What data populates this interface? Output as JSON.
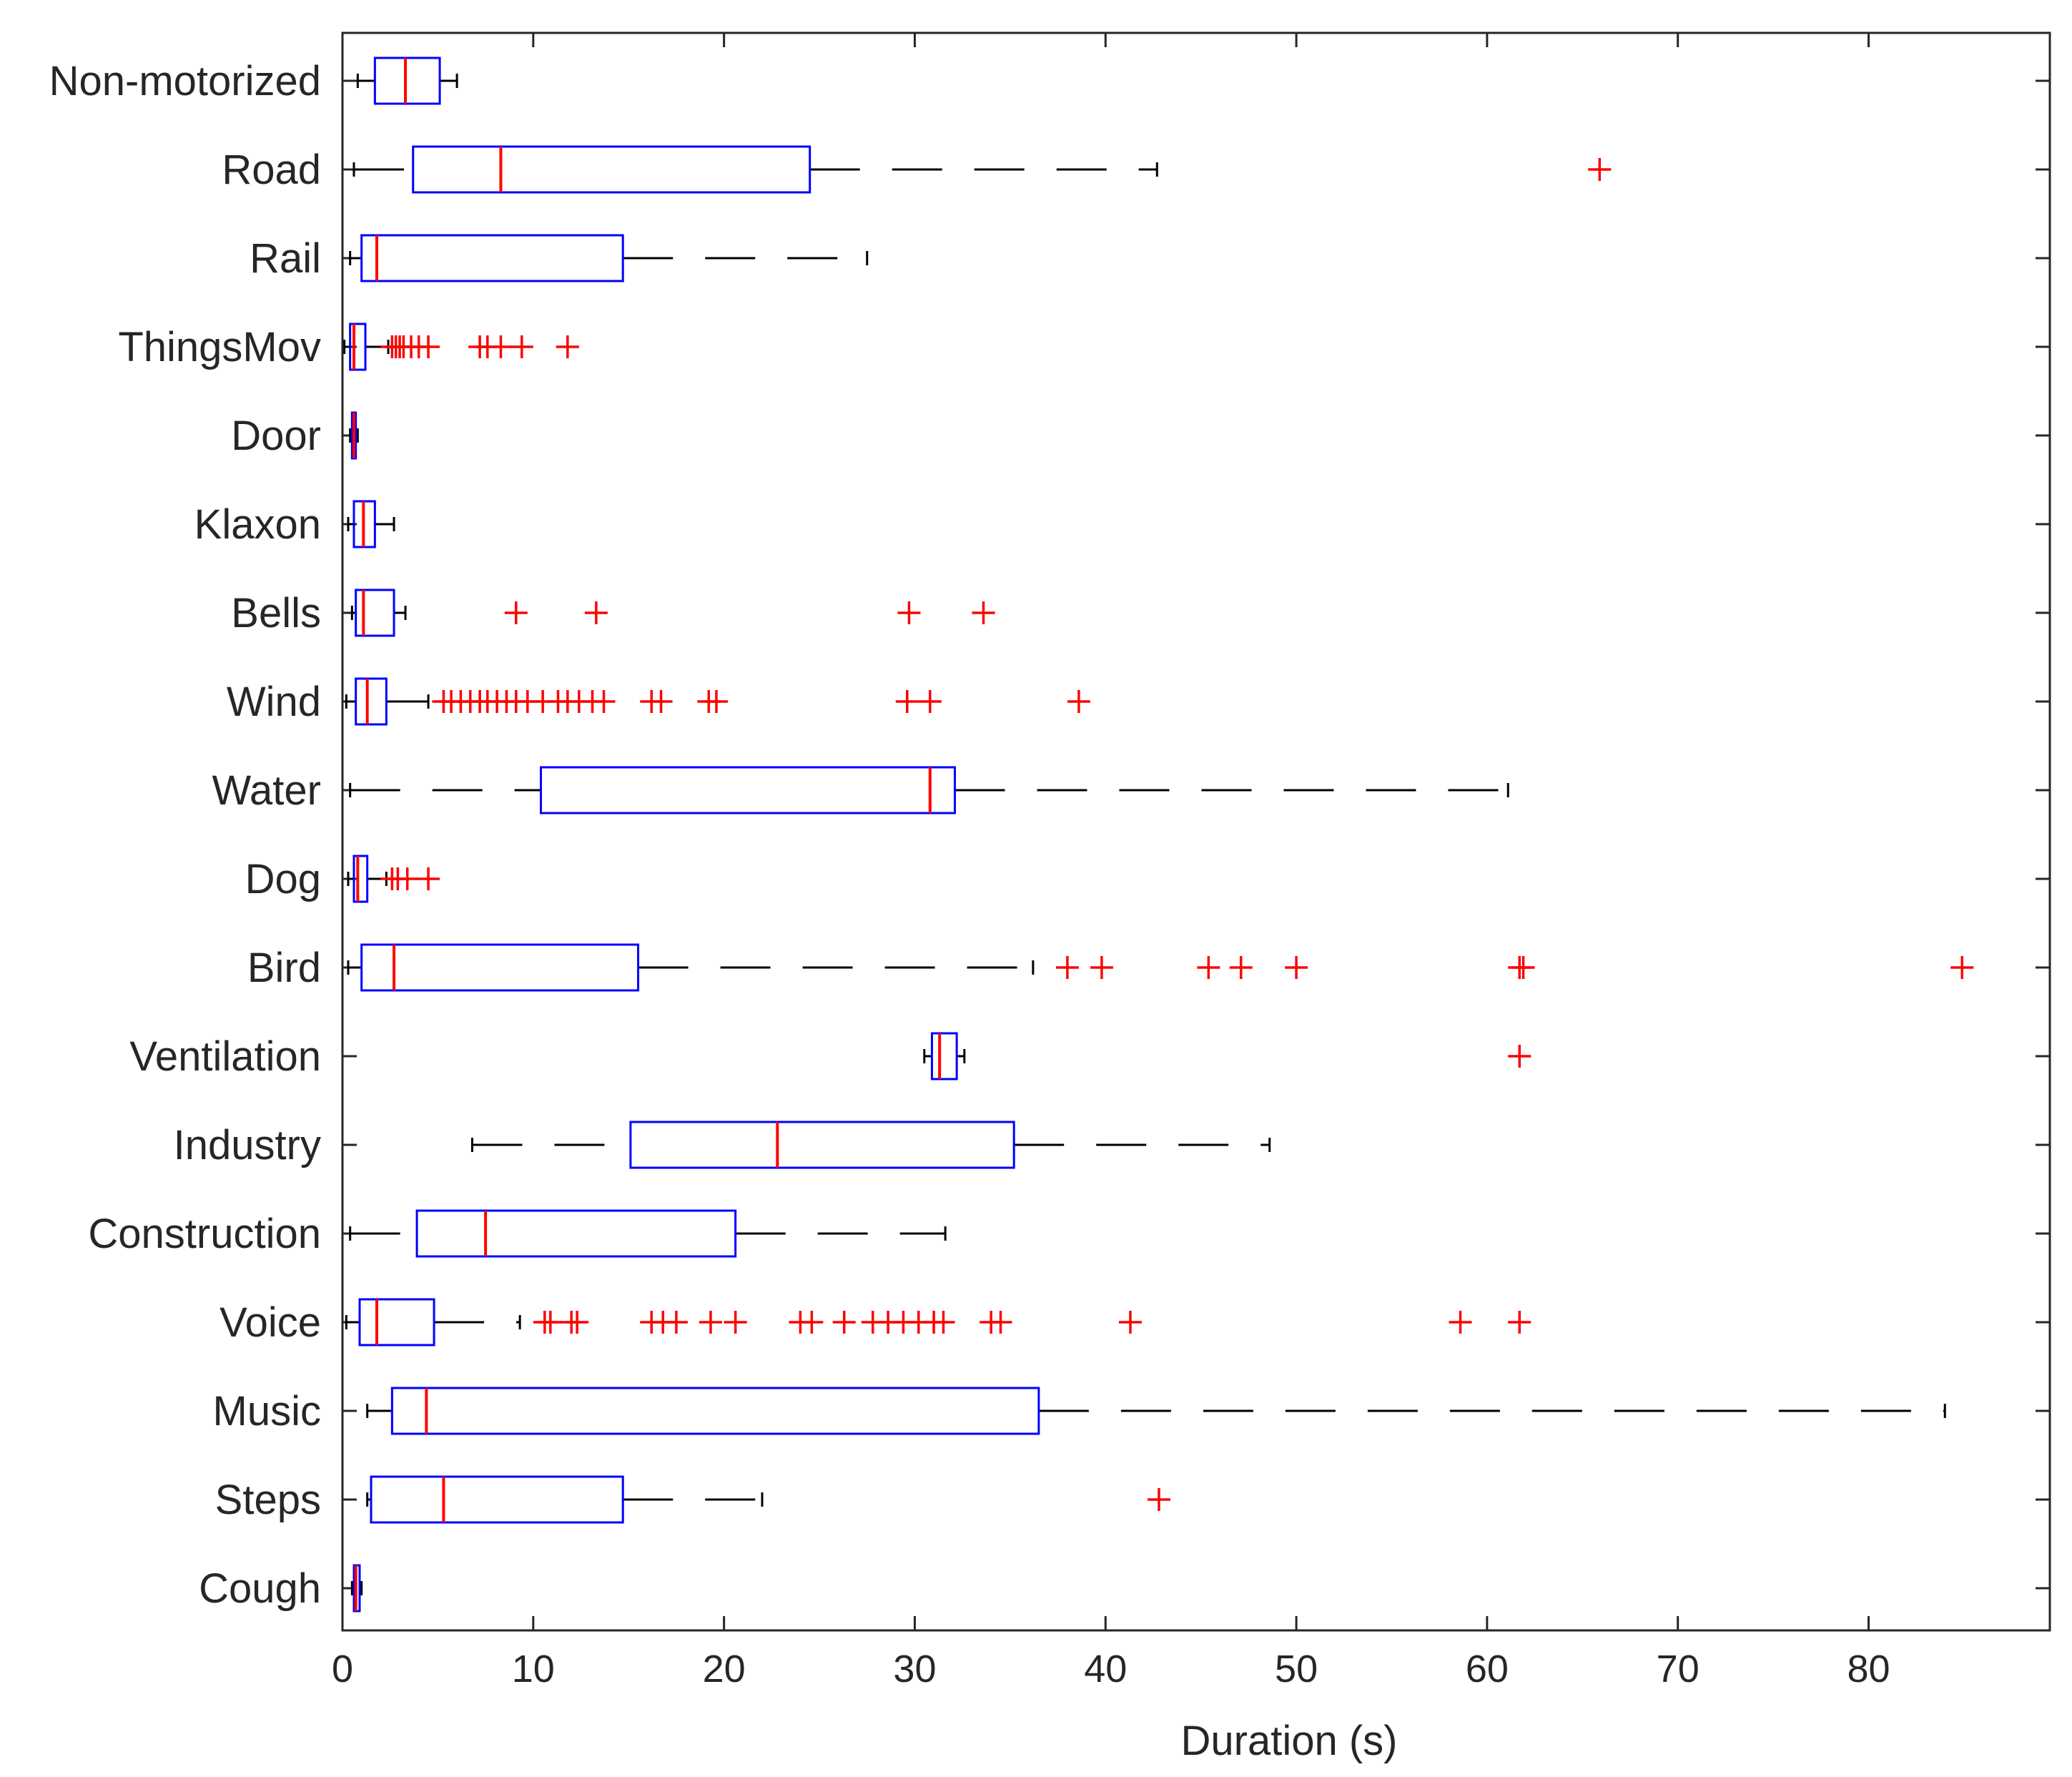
{
  "chart_data": {
    "type": "boxplot",
    "orientation": "horizontal",
    "title": "",
    "xlabel": "Duration (s)",
    "ylabel": "",
    "xlim": [
      0,
      89.5
    ],
    "xticks": [
      0,
      10,
      20,
      30,
      40,
      50,
      60,
      70,
      80
    ],
    "grid": false,
    "colors": {
      "box": "#0000ff",
      "median": "#ff0000",
      "whisker": "#000000",
      "outlier": "#ff0000",
      "axis": "#262626"
    },
    "categories": [
      "Non-motorized",
      "Road",
      "Rail",
      "ThingsMov",
      "Door",
      "Klaxon",
      "Bells",
      "Wind",
      "Water",
      "Dog",
      "Bird",
      "Ventilation",
      "Industry",
      "Construction",
      "Voice",
      "Music",
      "Steps",
      "Cough"
    ],
    "series": [
      {
        "name": "Non-motorized",
        "whisker_low": 0.8,
        "q1": 1.7,
        "median": 3.3,
        "q3": 5.1,
        "whisker_high": 6.0,
        "outliers": []
      },
      {
        "name": "Road",
        "whisker_low": 0.6,
        "q1": 3.7,
        "median": 8.3,
        "q3": 24.5,
        "whisker_high": 42.7,
        "outliers": [
          65.9
        ]
      },
      {
        "name": "Rail",
        "whisker_low": 0.4,
        "q1": 1.0,
        "median": 1.8,
        "q3": 14.7,
        "whisker_high": 27.5,
        "outliers": []
      },
      {
        "name": "ThingsMov",
        "whisker_low": 0.1,
        "q1": 0.4,
        "median": 0.6,
        "q3": 1.2,
        "whisker_high": 2.4,
        "outliers": [
          2.6,
          2.8,
          3.0,
          3.2,
          3.6,
          4.0,
          4.5,
          7.2,
          7.6,
          8.3,
          9.4,
          11.8
        ]
      },
      {
        "name": "Door",
        "whisker_low": 0.4,
        "q1": 0.5,
        "median": 0.6,
        "q3": 0.7,
        "whisker_high": 0.8,
        "outliers": []
      },
      {
        "name": "Klaxon",
        "whisker_low": 0.3,
        "q1": 0.6,
        "median": 1.1,
        "q3": 1.7,
        "whisker_high": 2.7,
        "outliers": []
      },
      {
        "name": "Bells",
        "whisker_low": 0.5,
        "q1": 0.7,
        "median": 1.1,
        "q3": 2.7,
        "whisker_high": 3.3,
        "outliers": [
          9.1,
          13.3,
          29.7,
          33.6
        ]
      },
      {
        "name": "Wind",
        "whisker_low": 0.2,
        "q1": 0.7,
        "median": 1.3,
        "q3": 2.3,
        "whisker_high": 4.5,
        "outliers": [
          5.3,
          5.7,
          6.2,
          6.7,
          7.2,
          7.6,
          8.1,
          8.6,
          9.1,
          9.7,
          10.5,
          11.3,
          11.8,
          12.4,
          13.1,
          13.7,
          16.2,
          16.7,
          19.2,
          19.6,
          29.6,
          30.8,
          38.6
        ]
      },
      {
        "name": "Water",
        "whisker_low": 0.4,
        "q1": 10.4,
        "median": 30.8,
        "q3": 32.1,
        "whisker_high": 61.1,
        "outliers": []
      },
      {
        "name": "Dog",
        "whisker_low": 0.3,
        "q1": 0.6,
        "median": 0.8,
        "q3": 1.3,
        "whisker_high": 2.3,
        "outliers": [
          2.6,
          2.9,
          3.4,
          4.5
        ]
      },
      {
        "name": "Bird",
        "whisker_low": 0.3,
        "q1": 1.0,
        "median": 2.7,
        "q3": 15.5,
        "whisker_high": 36.2,
        "outliers": [
          38.0,
          39.8,
          45.4,
          47.1,
          50.0,
          61.7,
          61.9,
          84.9
        ]
      },
      {
        "name": "Ventilation",
        "whisker_low": 30.5,
        "q1": 30.9,
        "median": 31.3,
        "q3": 32.2,
        "whisker_high": 32.6,
        "outliers": [
          61.7
        ]
      },
      {
        "name": "Industry",
        "whisker_low": 6.8,
        "q1": 15.1,
        "median": 22.8,
        "q3": 35.2,
        "whisker_high": 48.6,
        "outliers": []
      },
      {
        "name": "Construction",
        "whisker_low": 0.4,
        "q1": 3.9,
        "median": 7.5,
        "q3": 20.6,
        "whisker_high": 31.6,
        "outliers": []
      },
      {
        "name": "Voice",
        "whisker_low": 0.2,
        "q1": 0.9,
        "median": 1.8,
        "q3": 4.8,
        "whisker_high": 9.3,
        "outliers": [
          10.6,
          10.9,
          12.0,
          12.3,
          16.2,
          16.8,
          17.5,
          19.3,
          20.6,
          24.0,
          24.6,
          26.3,
          27.8,
          28.6,
          29.4,
          30.2,
          31.0,
          31.5,
          34.0,
          34.5,
          41.3,
          58.6,
          61.7
        ]
      },
      {
        "name": "Music",
        "whisker_low": 1.3,
        "q1": 2.6,
        "median": 4.4,
        "q3": 36.5,
        "whisker_high": 84.0,
        "outliers": []
      },
      {
        "name": "Steps",
        "whisker_low": 1.3,
        "q1": 1.5,
        "median": 5.3,
        "q3": 14.7,
        "whisker_high": 22.0,
        "outliers": [
          42.8
        ]
      },
      {
        "name": "Cough",
        "whisker_low": 0.5,
        "q1": 0.6,
        "median": 0.7,
        "q3": 0.9,
        "whisker_high": 1.0,
        "outliers": []
      }
    ]
  }
}
